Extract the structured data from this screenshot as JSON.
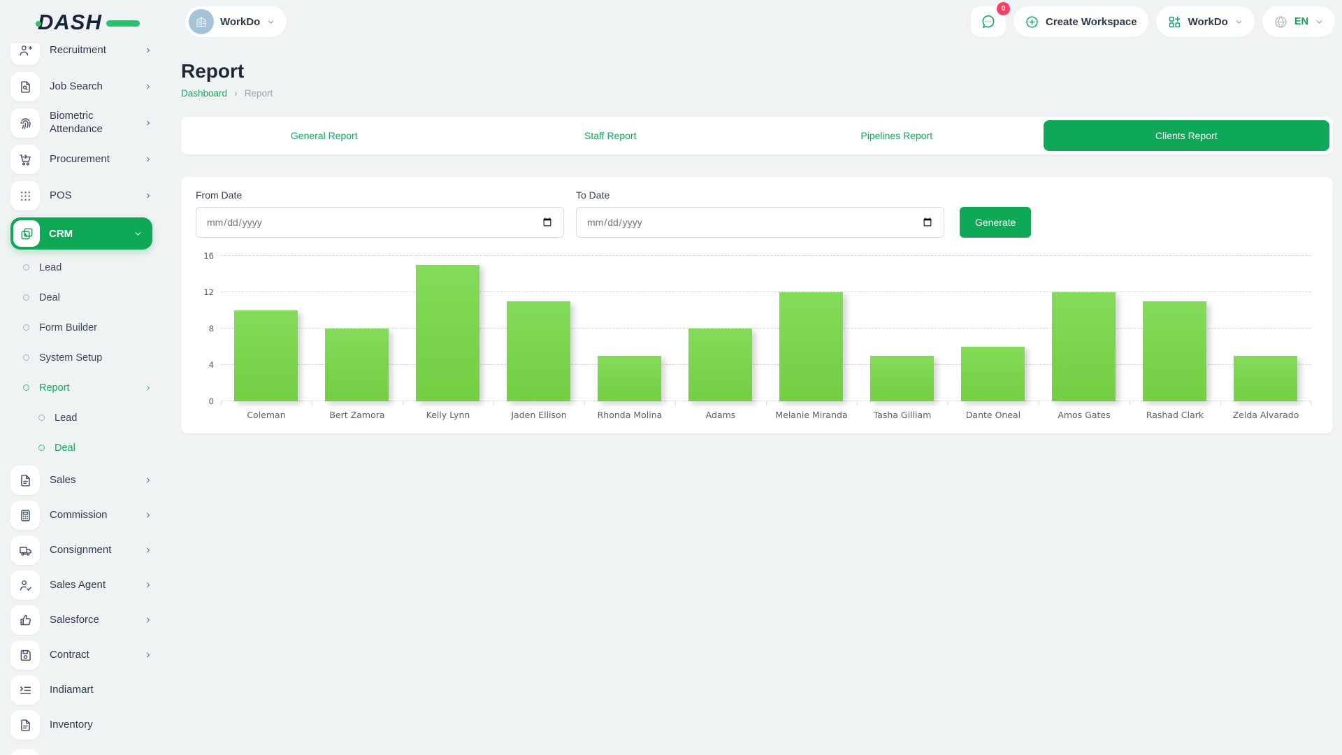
{
  "colors": {
    "accent_green": "#0fa857",
    "link_green": "#12a75c",
    "bar_green": "#7cd64f",
    "badge_pink": "#fb3e63",
    "page_bg": "#f0f3f4",
    "avatar_blue": "#a3c3d8"
  },
  "brand": {
    "logo_text": "DASH"
  },
  "topbar": {
    "workspace": {
      "label": "WorkDo",
      "avatar_icon": "building-icon"
    },
    "messages": {
      "icon": "chat-icon",
      "badge": "0"
    },
    "create_workspace": {
      "icon": "plus-circle-icon",
      "label": "Create Workspace"
    },
    "app_switcher": {
      "icon": "app-grid-icon",
      "label": "WorkDo"
    },
    "language": {
      "icon": "globe-icon",
      "label": "EN"
    }
  },
  "sidebar": {
    "top_items": [
      {
        "label": "Recruitment",
        "icon": "person-add-icon",
        "chevron": true
      },
      {
        "label": "Job Search",
        "icon": "document-search-icon",
        "chevron": true
      },
      {
        "label": "Biometric Attendance",
        "icon": "fingerprint-icon",
        "chevron": true
      },
      {
        "label": "Procurement",
        "icon": "cart-icon",
        "chevron": true
      },
      {
        "label": "POS",
        "icon": "grid-icon",
        "chevron": true
      }
    ],
    "crm": {
      "label": "CRM",
      "icon": "pages-icon",
      "active": true
    },
    "crm_submenu": [
      {
        "label": "Lead",
        "active": false
      },
      {
        "label": "Deal",
        "active": false
      },
      {
        "label": "Form Builder",
        "active": false
      },
      {
        "label": "System Setup",
        "active": false
      },
      {
        "label": "Report",
        "active": true,
        "chevron": true
      }
    ],
    "report_submenu": [
      {
        "label": "Lead",
        "active": false
      },
      {
        "label": "Deal",
        "active": true
      }
    ],
    "bottom_items": [
      {
        "label": "Sales",
        "icon": "file-icon",
        "chevron": true
      },
      {
        "label": "Commission",
        "icon": "calculator-icon",
        "chevron": true
      },
      {
        "label": "Consignment",
        "icon": "truck-icon",
        "chevron": true
      },
      {
        "label": "Sales Agent",
        "icon": "person-check-icon",
        "chevron": true
      },
      {
        "label": "Salesforce",
        "icon": "thumbs-up-icon",
        "chevron": true
      },
      {
        "label": "Contract",
        "icon": "save-icon",
        "chevron": true
      },
      {
        "label": "Indiamart",
        "icon": "list-icon",
        "chevron": false
      },
      {
        "label": "Inventory",
        "icon": "file-icon",
        "chevron": false
      }
    ]
  },
  "page": {
    "title": "Report",
    "breadcrumb": [
      "Dashboard",
      "Report"
    ],
    "breadcrumb_separator": "›"
  },
  "tabs": [
    {
      "label": "General Report",
      "active": false
    },
    {
      "label": "Staff Report",
      "active": false
    },
    {
      "label": "Pipelines Report",
      "active": false
    },
    {
      "label": "Clients Report",
      "active": true
    }
  ],
  "filters": {
    "from_label": "From Date",
    "to_label": "To Date",
    "date_placeholder": "mm/dd/yyyy",
    "generate_label": "Generate"
  },
  "chart_data": {
    "type": "bar",
    "categories": [
      "Coleman",
      "Bert Zamora",
      "Kelly Lynn",
      "Jaden Ellison",
      "Rhonda Molina",
      "Adams",
      "Melanie Miranda",
      "Tasha Gilliam",
      "Dante Oneal",
      "Amos Gates",
      "Rashad Clark",
      "Zelda Alvarado"
    ],
    "values": [
      10,
      8,
      15,
      11,
      5,
      8,
      12,
      5,
      6,
      12,
      11,
      5
    ],
    "title": "",
    "xlabel": "",
    "ylabel": "",
    "ylim": [
      0,
      16
    ],
    "yticks": [
      0,
      4,
      8,
      12,
      16
    ],
    "grid": true,
    "legend": false,
    "bar_color": "#7cd64f"
  }
}
